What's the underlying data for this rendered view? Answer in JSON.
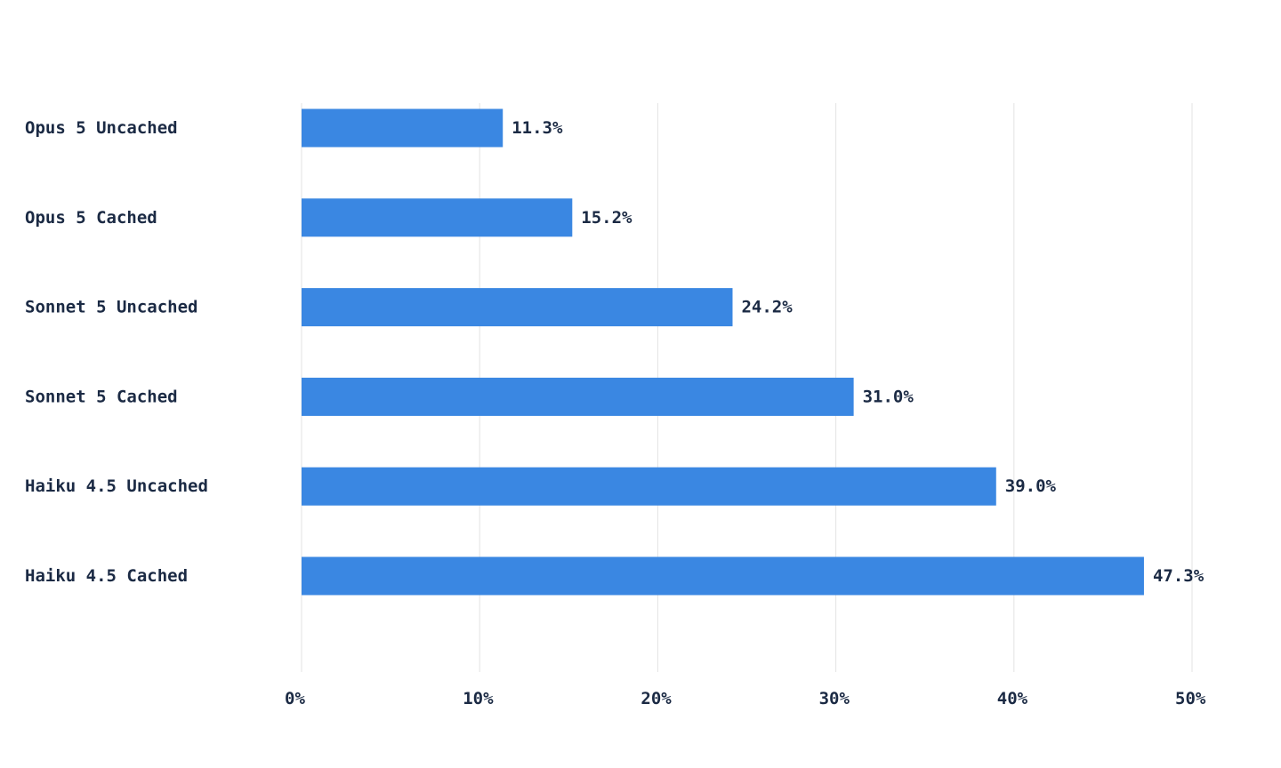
{
  "chart_data": {
    "type": "bar",
    "orientation": "horizontal",
    "categories": [
      "Opus 5 Uncached",
      "Opus 5 Cached",
      "Sonnet 5 Uncached",
      "Sonnet 5 Cached",
      "Haiku 4.5 Uncached",
      "Haiku 4.5 Cached"
    ],
    "values": [
      11.3,
      15.2,
      24.2,
      31.0,
      39.0,
      47.3
    ],
    "value_labels": [
      "11.3%",
      "15.2%",
      "24.2%",
      "31.0%",
      "39.0%",
      "47.3%"
    ],
    "title": "",
    "xlabel": "",
    "ylabel": "",
    "xlim": [
      0,
      50
    ],
    "x_ticks": [
      0,
      10,
      20,
      30,
      40,
      50
    ],
    "x_tick_labels": [
      "0%",
      "10%",
      "20%",
      "30%",
      "40%",
      "50%"
    ],
    "grid": "vertical",
    "legend": "none",
    "bar_color": "#3a87e2",
    "text_color": "#1b2a44",
    "grid_color": "#e3e3e3"
  }
}
